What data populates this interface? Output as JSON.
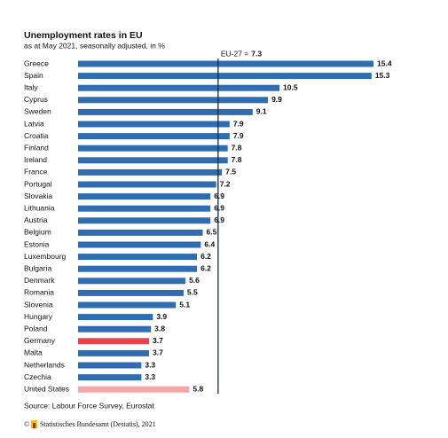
{
  "chart_data": {
    "type": "barh",
    "title": "Unemployment rates in EU",
    "subtitle": "as at May 2021, seasonally adjusted, in %",
    "categories": [
      "Greece",
      "Spain",
      "Italy",
      "Cyprus",
      "Sweden",
      "Latvia",
      "Croatia",
      "Finland",
      "Ireland",
      "France",
      "Portugal",
      "Slovakia",
      "Lithuania",
      "Austria",
      "Belgium",
      "Estonia",
      "Luxembourg",
      "Bulgaria",
      "Denmark",
      "Romania",
      "Slovenia",
      "Hungary",
      "Poland",
      "Germany",
      "Malta",
      "Netherlands",
      "Czechia",
      "United States"
    ],
    "values": [
      15.4,
      15.3,
      10.5,
      9.9,
      9.1,
      7.9,
      7.9,
      7.8,
      7.8,
      7.5,
      7.2,
      6.9,
      6.9,
      6.9,
      6.5,
      6.4,
      6.2,
      6.2,
      5.6,
      5.5,
      5.1,
      3.9,
      3.8,
      3.7,
      3.7,
      3.3,
      3.3,
      5.8
    ],
    "colors": [
      "#2f6db0",
      "#2f6db0",
      "#2f6db0",
      "#2f6db0",
      "#2f6db0",
      "#2f6db0",
      "#2f6db0",
      "#2f6db0",
      "#2f6db0",
      "#2f6db0",
      "#2f6db0",
      "#2f6db0",
      "#2f6db0",
      "#2f6db0",
      "#2f6db0",
      "#2f6db0",
      "#2f6db0",
      "#2f6db0",
      "#2f6db0",
      "#2f6db0",
      "#2f6db0",
      "#2f6db0",
      "#2f6db0",
      "#e8434c",
      "#2f6db0",
      "#2f6db0",
      "#2f6db0",
      "#f6a7aa"
    ],
    "xlim": [
      0,
      15.4
    ],
    "reference": {
      "label": "EU-27 =",
      "value": 7.3
    },
    "source": "Source: Labour Force Survey, Eurostat",
    "copyright": "©",
    "publisher": "Statistisches Bundesamt (Destatis), 2021"
  }
}
